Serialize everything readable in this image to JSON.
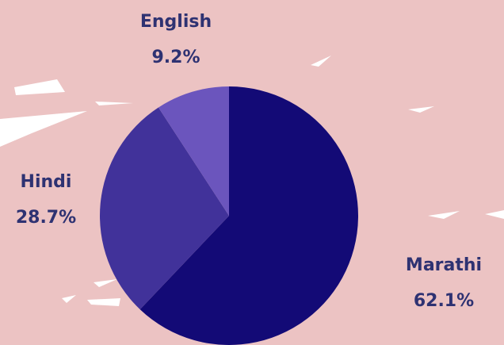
{
  "chart_data": {
    "type": "pie",
    "categories": [
      "Marathi",
      "Hindi",
      "English"
    ],
    "values": [
      62.1,
      28.7,
      9.2
    ],
    "value_labels": [
      "62.1%",
      "28.7%",
      "9.2%"
    ],
    "colors": [
      "#130a76",
      "#41329a",
      "#6b55bd"
    ]
  }
}
